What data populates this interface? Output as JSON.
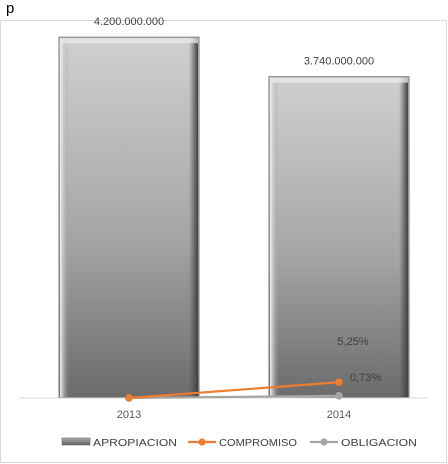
{
  "page": {
    "cut_title": "p"
  },
  "chart_data": {
    "type": "bar",
    "categories": [
      "2013",
      "2014"
    ],
    "ylim": [
      0,
      4400000000
    ],
    "series": [
      {
        "name": "APROPIACION",
        "kind": "bar",
        "values": [
          4200000000,
          3740000000
        ],
        "labels": [
          "4.200.000.000",
          "3.740.000.000"
        ],
        "color": "#8c8c8c"
      },
      {
        "name": "COMPROMISO",
        "kind": "line",
        "values_percent": [
          0,
          5.25
        ],
        "labels": [
          "",
          "5,25%"
        ],
        "color": "#ed7d31"
      },
      {
        "name": "OBLIGACION",
        "kind": "line",
        "values_percent": [
          0,
          0.73
        ],
        "labels": [
          "",
          "0,73%"
        ],
        "color": "#a5a5a5"
      }
    ],
    "legend_position": "bottom",
    "grid": false
  }
}
